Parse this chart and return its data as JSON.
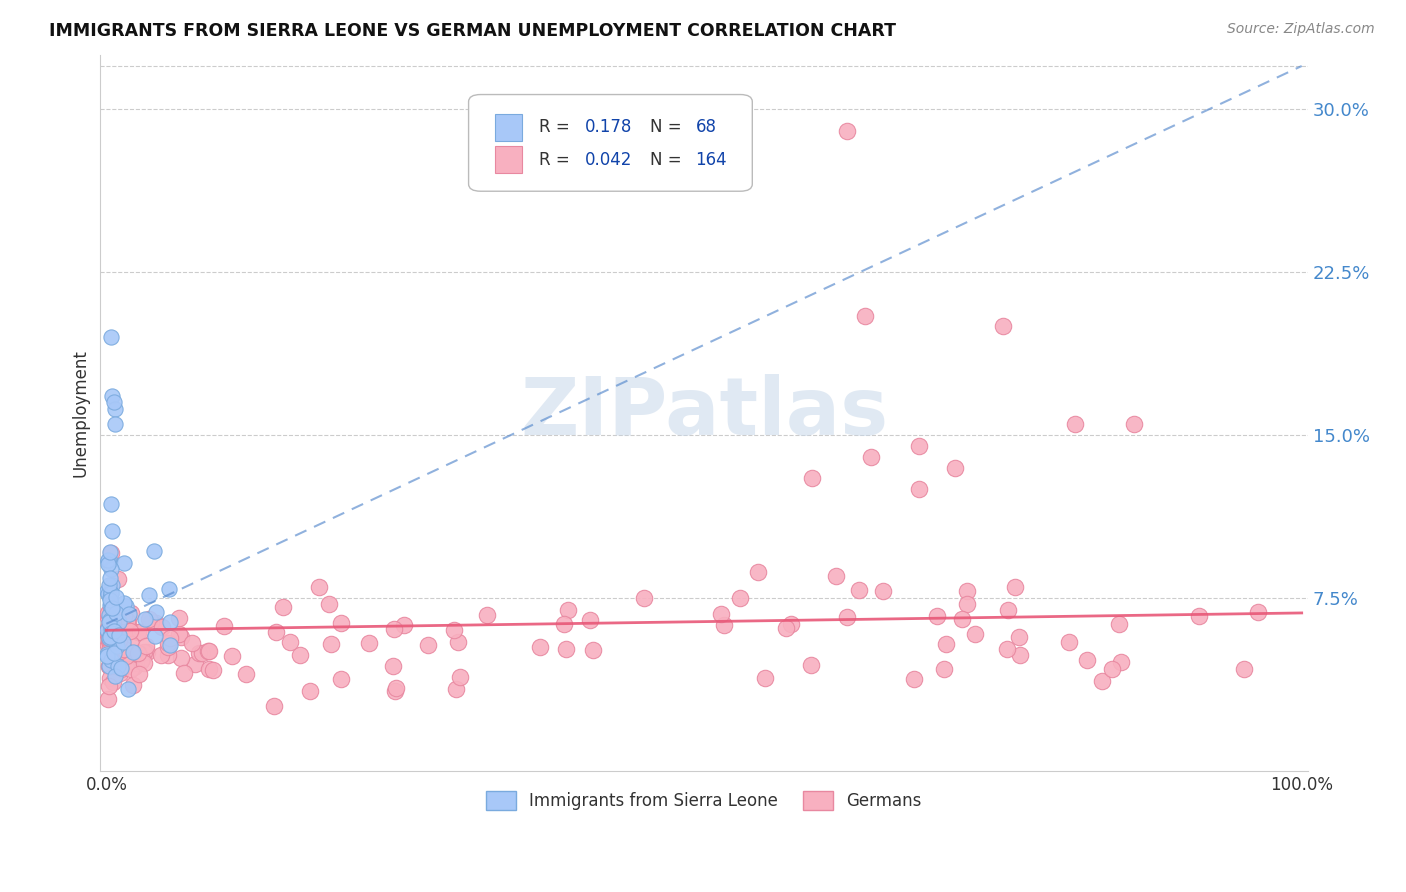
{
  "title": "IMMIGRANTS FROM SIERRA LEONE VS GERMAN UNEMPLOYMENT CORRELATION CHART",
  "source": "Source: ZipAtlas.com",
  "ylabel": "Unemployment",
  "ytick_vals": [
    0.075,
    0.15,
    0.225,
    0.3
  ],
  "ytick_labels": [
    "7.5%",
    "15.0%",
    "22.5%",
    "30.0%"
  ],
  "xlim": [
    0.0,
    1.0
  ],
  "ylim": [
    0.0,
    0.32
  ],
  "color_blue": "#a8c8f8",
  "color_blue_edge": "#7aaade",
  "color_pink": "#f8b0c0",
  "color_pink_edge": "#e888a0",
  "trend_blue_color": "#5588cc",
  "trend_pink_color": "#e85878",
  "watermark_color": "#c8d8ea",
  "tick_color": "#4488cc",
  "legend_text_color": "#1144aa",
  "legend_label_color": "#333333"
}
